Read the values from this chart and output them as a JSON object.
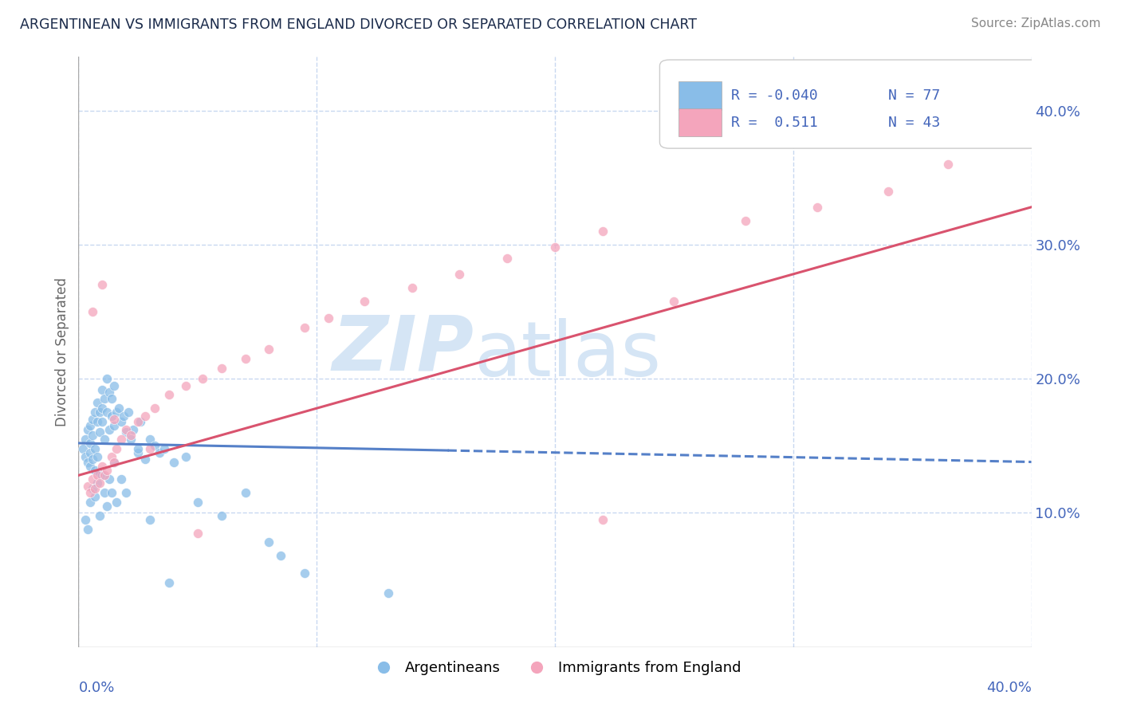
{
  "title": "ARGENTINEAN VS IMMIGRANTS FROM ENGLAND DIVORCED OR SEPARATED CORRELATION CHART",
  "source_text": "Source: ZipAtlas.com",
  "ylabel": "Divorced or Separated",
  "ytick_labels": [
    "10.0%",
    "20.0%",
    "30.0%",
    "40.0%"
  ],
  "ytick_values": [
    0.1,
    0.2,
    0.3,
    0.4
  ],
  "xlim": [
    0.0,
    0.4
  ],
  "ylim": [
    0.0,
    0.44
  ],
  "legend_r_blue": "-0.040",
  "legend_n_blue": "77",
  "legend_r_pink": "0.511",
  "legend_n_pink": "43",
  "blue_color": "#89bde8",
  "pink_color": "#f4a5bc",
  "trend_blue_color": "#5580c8",
  "trend_pink_color": "#d9536e",
  "watermark_zip": "ZIP",
  "watermark_atlas": "atlas",
  "watermark_color": "#d5e5f5",
  "grid_color": "#c8d8f0",
  "background_color": "#ffffff",
  "title_color": "#1a2a4a",
  "source_color": "#888888",
  "axis_label_color": "#4466bb",
  "ylabel_color": "#666666",
  "blue_x": [
    0.002,
    0.003,
    0.003,
    0.004,
    0.004,
    0.005,
    0.005,
    0.005,
    0.005,
    0.006,
    0.006,
    0.006,
    0.007,
    0.007,
    0.007,
    0.008,
    0.008,
    0.008,
    0.009,
    0.009,
    0.009,
    0.01,
    0.01,
    0.01,
    0.011,
    0.011,
    0.012,
    0.012,
    0.013,
    0.013,
    0.014,
    0.014,
    0.015,
    0.015,
    0.016,
    0.017,
    0.018,
    0.019,
    0.02,
    0.021,
    0.022,
    0.023,
    0.025,
    0.026,
    0.028,
    0.03,
    0.032,
    0.034,
    0.036,
    0.04,
    0.003,
    0.004,
    0.005,
    0.006,
    0.007,
    0.008,
    0.009,
    0.01,
    0.011,
    0.012,
    0.013,
    0.014,
    0.015,
    0.016,
    0.018,
    0.02,
    0.025,
    0.03,
    0.038,
    0.045,
    0.05,
    0.06,
    0.07,
    0.08,
    0.085,
    0.095,
    0.13
  ],
  "blue_y": [
    0.148,
    0.142,
    0.155,
    0.138,
    0.162,
    0.145,
    0.152,
    0.135,
    0.165,
    0.14,
    0.158,
    0.17,
    0.148,
    0.175,
    0.132,
    0.168,
    0.182,
    0.142,
    0.175,
    0.16,
    0.13,
    0.178,
    0.168,
    0.192,
    0.155,
    0.185,
    0.175,
    0.2,
    0.162,
    0.19,
    0.172,
    0.185,
    0.165,
    0.195,
    0.175,
    0.178,
    0.168,
    0.172,
    0.16,
    0.175,
    0.155,
    0.162,
    0.145,
    0.168,
    0.14,
    0.155,
    0.15,
    0.145,
    0.148,
    0.138,
    0.095,
    0.088,
    0.108,
    0.118,
    0.112,
    0.122,
    0.098,
    0.128,
    0.115,
    0.105,
    0.125,
    0.115,
    0.138,
    0.108,
    0.125,
    0.115,
    0.148,
    0.095,
    0.048,
    0.142,
    0.108,
    0.098,
    0.115,
    0.078,
    0.068,
    0.055,
    0.04
  ],
  "pink_x": [
    0.004,
    0.005,
    0.006,
    0.007,
    0.008,
    0.009,
    0.01,
    0.011,
    0.012,
    0.014,
    0.015,
    0.016,
    0.018,
    0.02,
    0.022,
    0.025,
    0.028,
    0.032,
    0.038,
    0.045,
    0.052,
    0.06,
    0.07,
    0.08,
    0.095,
    0.105,
    0.12,
    0.14,
    0.16,
    0.18,
    0.2,
    0.22,
    0.25,
    0.28,
    0.31,
    0.34,
    0.365,
    0.006,
    0.01,
    0.015,
    0.03,
    0.05,
    0.22
  ],
  "pink_y": [
    0.12,
    0.115,
    0.125,
    0.118,
    0.128,
    0.122,
    0.135,
    0.128,
    0.132,
    0.142,
    0.138,
    0.148,
    0.155,
    0.162,
    0.158,
    0.168,
    0.172,
    0.178,
    0.188,
    0.195,
    0.2,
    0.208,
    0.215,
    0.222,
    0.238,
    0.245,
    0.258,
    0.268,
    0.278,
    0.29,
    0.298,
    0.31,
    0.258,
    0.318,
    0.328,
    0.34,
    0.36,
    0.25,
    0.27,
    0.17,
    0.148,
    0.085,
    0.095
  ],
  "blue_trend_x0": 0.0,
  "blue_trend_x_solid_end": 0.155,
  "blue_trend_x1": 0.4,
  "blue_trend_y0": 0.152,
  "blue_trend_y1": 0.138,
  "pink_trend_y0": 0.128,
  "pink_trend_y1": 0.328
}
